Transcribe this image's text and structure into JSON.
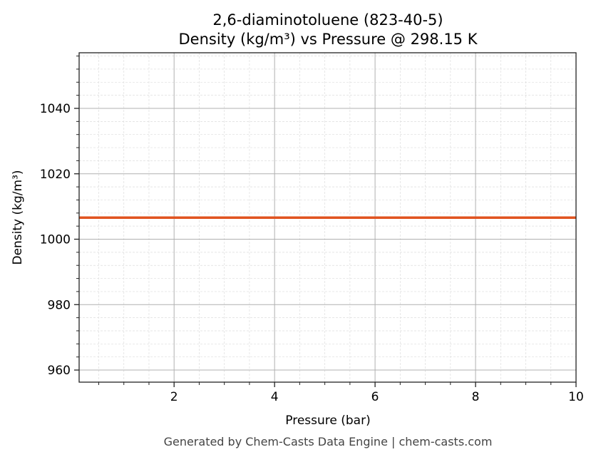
{
  "chart_data": {
    "type": "line",
    "title": "2,6-diaminotoluene (823-40-5)",
    "subtitle": "Density (kg/m³) vs Pressure @ 298.15 K",
    "xlabel": "Pressure (bar)",
    "ylabel": "Density (kg/m³)",
    "xlim": [
      0.11,
      10
    ],
    "ylim": [
      956.3,
      1057
    ],
    "xticks": [
      2,
      4,
      6,
      8,
      10
    ],
    "yticks": [
      960,
      980,
      1000,
      1020,
      1040
    ],
    "grid": true,
    "series": [
      {
        "x": [
          0.11,
          10
        ],
        "y": [
          1006.6,
          1006.6
        ],
        "color": "#E0531F"
      }
    ]
  },
  "footer": "Generated by Chem-Casts Data Engine | chem-casts.com"
}
